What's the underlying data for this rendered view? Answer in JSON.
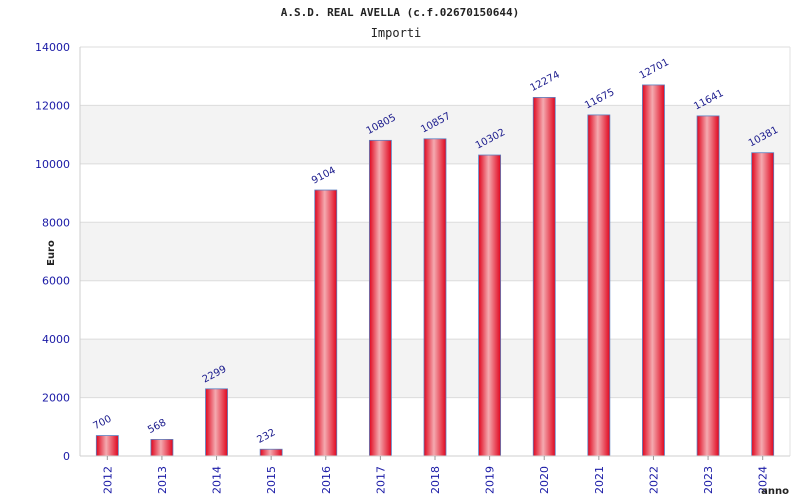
{
  "chart_data": {
    "type": "bar",
    "title": "A.S.D. REAL AVELLA (c.f.02670150644)",
    "subtitle": "Importi",
    "xlabel": "anno",
    "ylabel": "Euro",
    "categories": [
      "2012",
      "2013",
      "2014",
      "2015",
      "2016",
      "2017",
      "2018",
      "2019",
      "2020",
      "2021",
      "2022",
      "2023",
      "2024"
    ],
    "values": [
      700,
      568,
      2299,
      232,
      9104,
      10805,
      10857,
      10302,
      12274,
      11675,
      12701,
      11641,
      10381
    ],
    "ylim": [
      0,
      14000
    ],
    "yticks": [
      0,
      2000,
      4000,
      6000,
      8000,
      10000,
      12000,
      14000
    ],
    "grid": true,
    "legend": "none",
    "colors": {
      "bar": "#e8102a",
      "bar_highlight": "#f2a2a8",
      "bar_edge": "#5a7fc0",
      "band_alt": "#f3f3f3",
      "tick_text": "#1a1aa6"
    }
  }
}
